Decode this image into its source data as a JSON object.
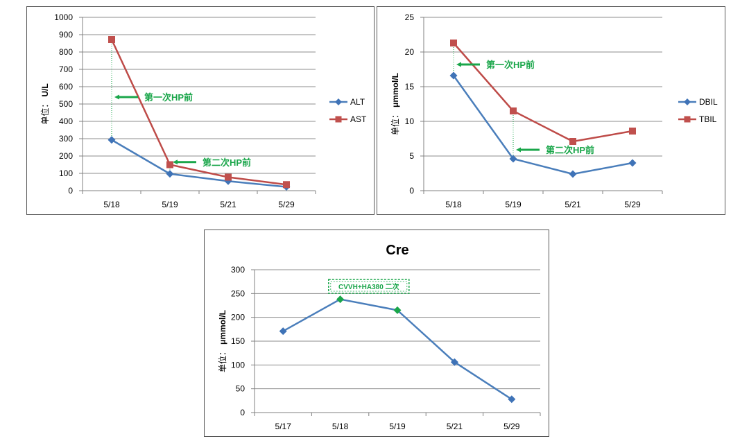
{
  "colors": {
    "blue": "#4a7ebb",
    "blue_marker": "#3f73b7",
    "red": "#be4b48",
    "red_marker": "#c0504d",
    "green": "#1aa64a",
    "grid": "#8c8c8c",
    "axis": "#808080"
  },
  "chart_data": [
    {
      "id": "liver-enzymes",
      "type": "line",
      "categories": [
        "5/18",
        "5/19",
        "5/21",
        "5/29"
      ],
      "series": [
        {
          "name": "ALT",
          "values": [
            293,
            97,
            55,
            22
          ],
          "marker": "diamond",
          "color": "blue"
        },
        {
          "name": "AST",
          "values": [
            872,
            150,
            78,
            35
          ],
          "marker": "square",
          "color": "red"
        }
      ],
      "ylim": [
        0,
        1000
      ],
      "yticks": [
        0,
        100,
        200,
        300,
        400,
        500,
        600,
        700,
        800,
        900,
        1000
      ],
      "ylabel_prefix": "单位：",
      "ylabel_unit": "U/L",
      "title": "",
      "legend_position": "right",
      "grid": true,
      "annotations": [
        {
          "text": "第一次HP前",
          "category_index": 0,
          "value": 540
        },
        {
          "text": "第二次HP前",
          "category_index": 1,
          "value": 165
        }
      ]
    },
    {
      "id": "bilirubin",
      "type": "line",
      "categories": [
        "5/18",
        "5/19",
        "5/21",
        "5/29"
      ],
      "series": [
        {
          "name": "DBIL",
          "values": [
            16.6,
            4.6,
            2.4,
            4.0
          ],
          "marker": "diamond",
          "color": "blue"
        },
        {
          "name": "TBIL",
          "values": [
            21.3,
            11.5,
            7.1,
            8.6
          ],
          "marker": "square",
          "color": "red"
        }
      ],
      "ylim": [
        0,
        25
      ],
      "yticks": [
        0,
        5,
        10,
        15,
        20,
        25
      ],
      "ylabel_prefix": "单位：",
      "ylabel_unit": "μmmol/L",
      "title": "",
      "legend_position": "right",
      "grid": true,
      "annotations": [
        {
          "text": "第一次HP前",
          "category_index": 0,
          "value": 18.2
        },
        {
          "text": "第二次HP前",
          "category_index": 1,
          "value": 5.9
        }
      ]
    },
    {
      "id": "creatinine",
      "type": "line",
      "categories": [
        "5/17",
        "5/18",
        "5/19",
        "5/21",
        "5/29"
      ],
      "series": [
        {
          "name": "Cre",
          "values": [
            171,
            238,
            215,
            106,
            28
          ],
          "marker": "diamond",
          "color": "blue",
          "highlight_indices": [
            1,
            2
          ]
        }
      ],
      "ylim": [
        0,
        300
      ],
      "yticks": [
        0,
        50,
        100,
        150,
        200,
        250,
        300
      ],
      "ylabel_prefix": "单位：",
      "ylabel_unit": "μmmol/L",
      "title": "Cre",
      "grid": true,
      "annotations": [
        {
          "text": "CVVH+HA380 二次",
          "category_index": 1.5,
          "value": 265
        }
      ]
    }
  ]
}
